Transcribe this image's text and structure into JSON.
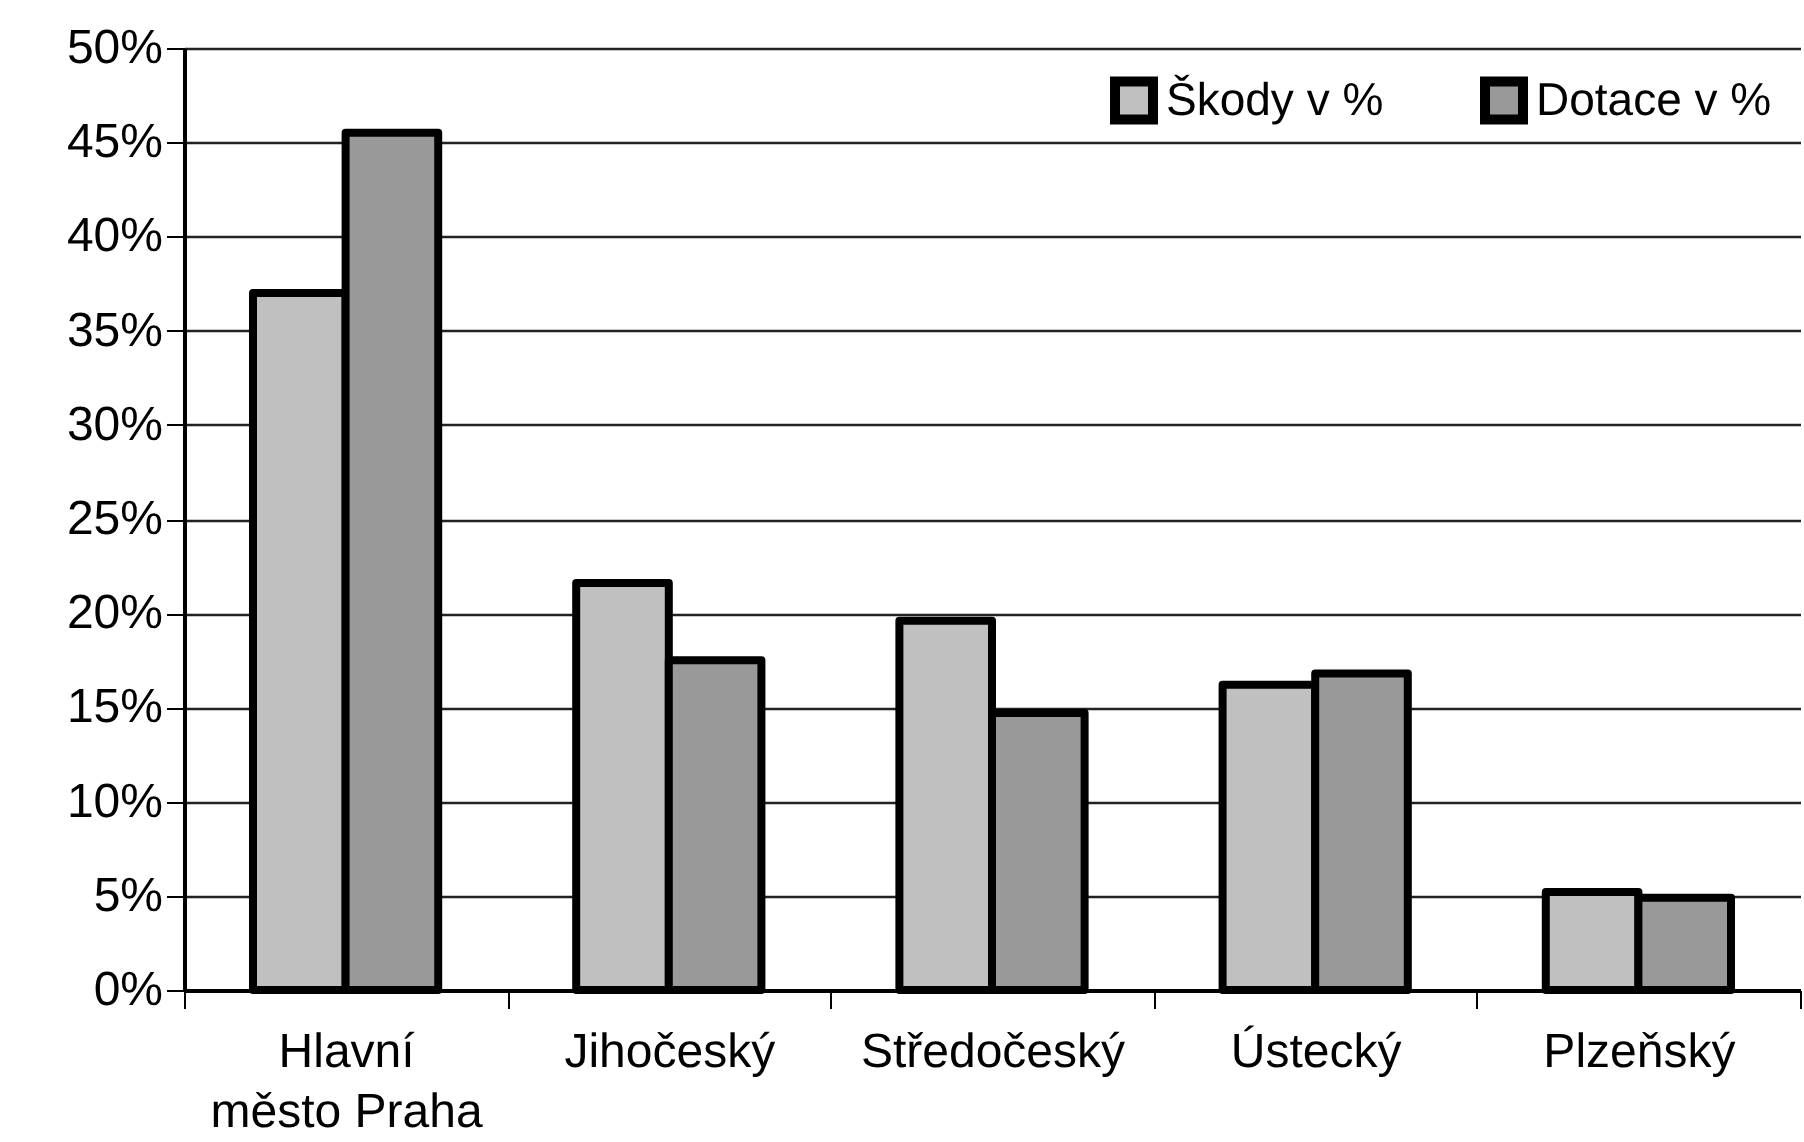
{
  "chart_data": {
    "type": "bar",
    "categories": [
      "Hlavní město Praha",
      "Jihočeský",
      "Středočeský",
      "Ústecký",
      "Plzeňský"
    ],
    "series": [
      {
        "name": "Škody v %",
        "color": "#c0c0c0",
        "values": [
          37,
          21.6,
          19.6,
          16.2,
          5.2
        ]
      },
      {
        "name": "Dotace v %",
        "color": "#999999",
        "values": [
          45.5,
          17.5,
          14.7,
          16.8,
          4.9
        ]
      }
    ],
    "ylim": [
      0,
      50
    ],
    "yticks": [
      {
        "value": 0,
        "label": "0%"
      },
      {
        "value": 5,
        "label": "5%"
      },
      {
        "value": 10,
        "label": "10%"
      },
      {
        "value": 15,
        "label": "15%"
      },
      {
        "value": 20,
        "label": "20%"
      },
      {
        "value": 25,
        "label": "25%"
      },
      {
        "value": 30,
        "label": "30%"
      },
      {
        "value": 35,
        "label": "35%"
      },
      {
        "value": 40,
        "label": "40%"
      },
      {
        "value": 45,
        "label": "45%"
      },
      {
        "value": 50,
        "label": "50%"
      }
    ],
    "grid": "y",
    "legend": "top right"
  }
}
